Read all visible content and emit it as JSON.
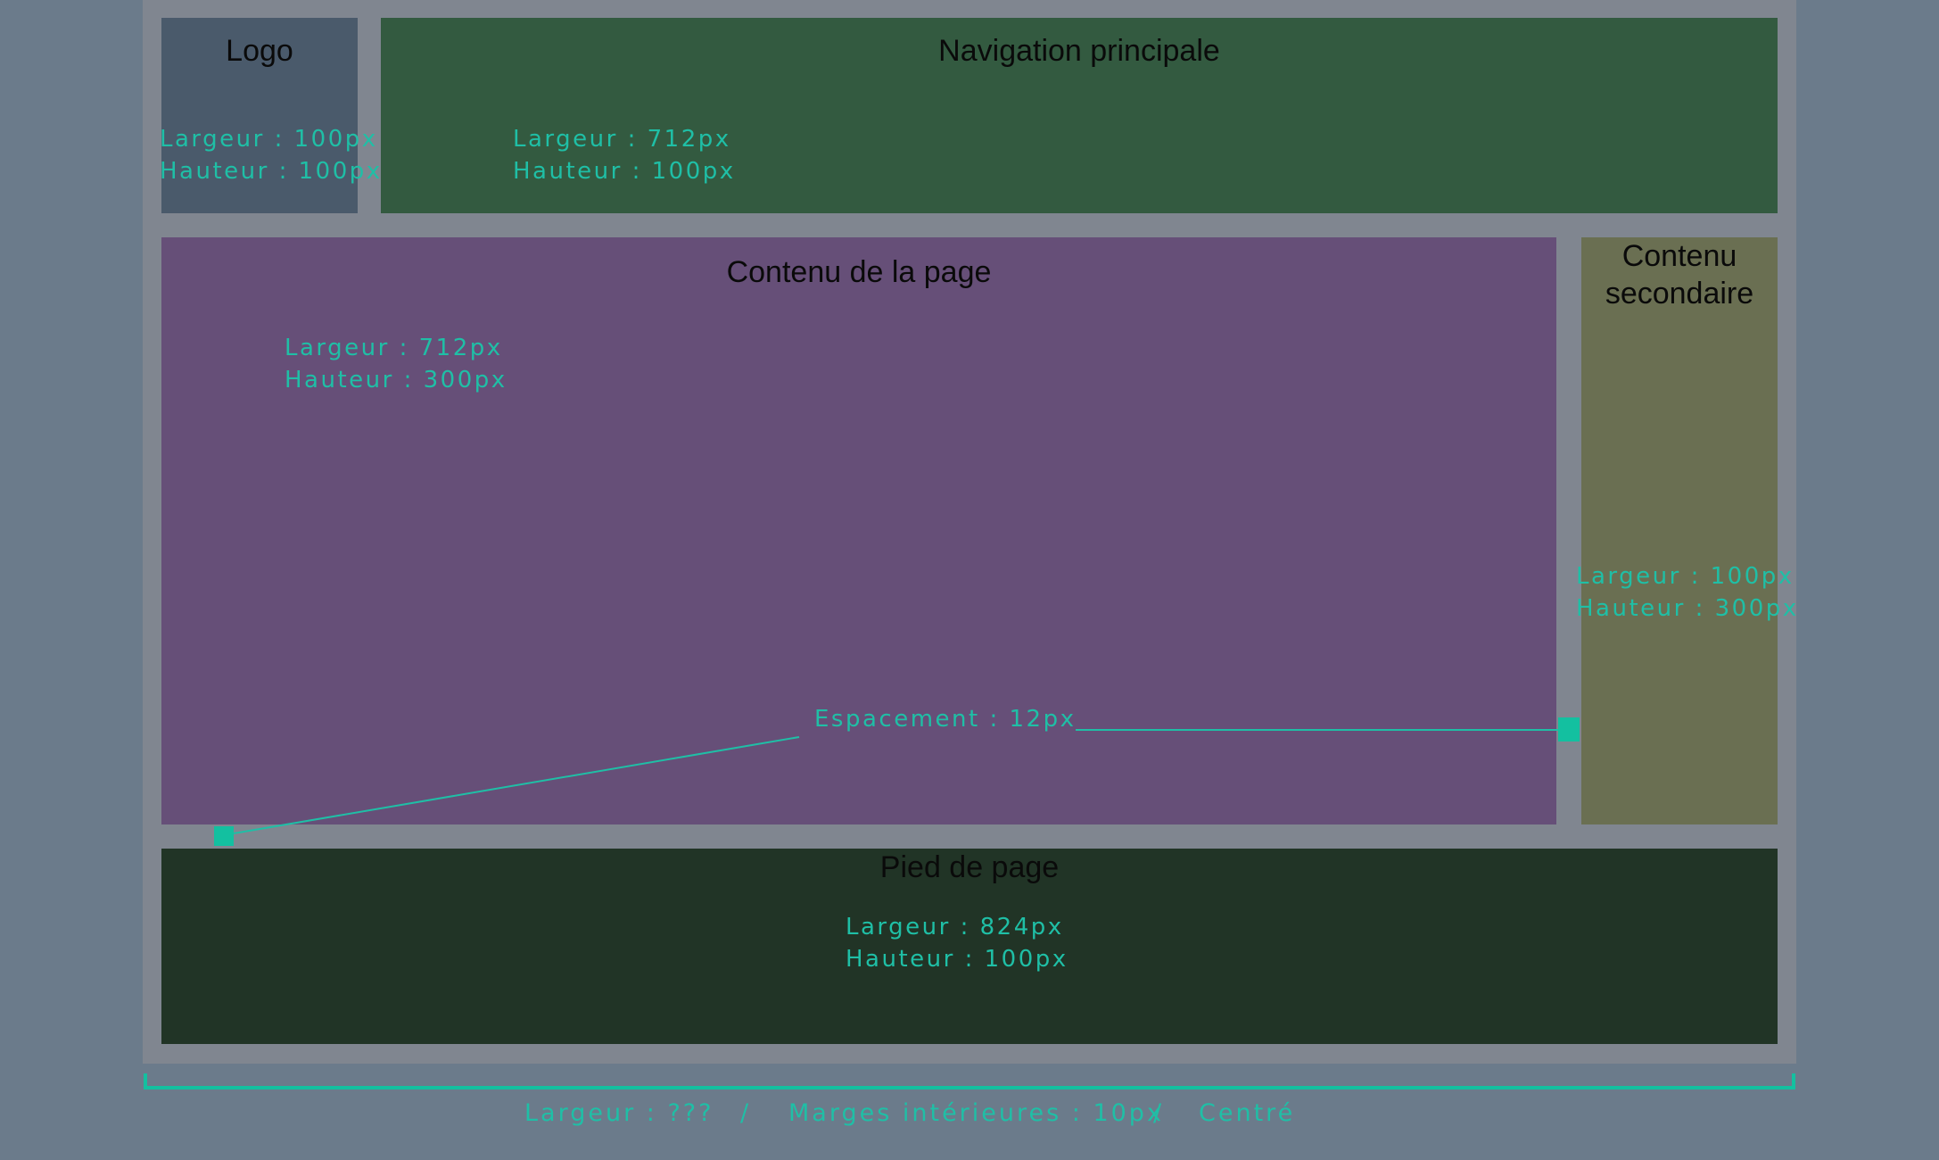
{
  "blocks": {
    "logo": {
      "title": "Logo",
      "width": "Largeur : 100px",
      "height": "Hauteur : 100px"
    },
    "nav": {
      "title": "Navigation principale",
      "width": "Largeur : 712px",
      "height": "Hauteur : 100px"
    },
    "main": {
      "title": "Contenu de la page",
      "width": "Largeur : 712px",
      "height": "Hauteur : 300px"
    },
    "aside": {
      "title_line1": "Contenu",
      "title_line2": "secondaire",
      "width": "Largeur : 100px",
      "height": "Hauteur : 300px"
    },
    "footer": {
      "title": "Pied de page",
      "width": "Largeur : 824px",
      "height": "Hauteur : 100px"
    }
  },
  "spacing_label": "Espacement : 12px",
  "container_caption": {
    "width": "Largeur : ???",
    "separator": "/",
    "padding": "Marges intérieures : 10px",
    "alignment": "Centré"
  },
  "colors": {
    "background": "#6b7b8b",
    "container": "#808690",
    "logo": "#4a5a6b",
    "nav": "#335a40",
    "main": "#664f78",
    "aside": "#6a6f52",
    "footer": "#213426",
    "annotation": "#1fbfa6"
  }
}
